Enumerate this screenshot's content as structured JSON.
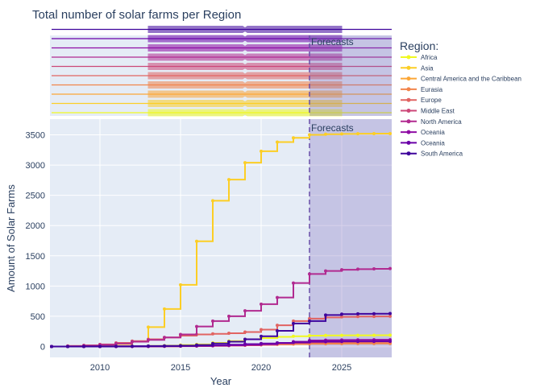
{
  "chart_data": {
    "type": "line",
    "title": "Total number of solar farms per Region",
    "xlabel": "Year",
    "ylabel": "Amount of Solar Farms",
    "xlim": [
      2006.9,
      2028.1
    ],
    "ylim": [
      -180,
      3760
    ],
    "xticks": [
      2010,
      2015,
      2020,
      2025
    ],
    "yticks": [
      0,
      500,
      1000,
      1500,
      2000,
      2500,
      3000,
      3500
    ],
    "legend_title": "Region:",
    "legend_position": "right",
    "grid": true,
    "shape": "step",
    "forecast": {
      "label": "Forecasts",
      "start": 2023,
      "end": 2028.1
    },
    "series": [
      {
        "name": "Africa",
        "color": "#f0f921",
        "x": [
          2007,
          2008,
          2009,
          2010,
          2011,
          2012,
          2013,
          2014,
          2015,
          2016,
          2017,
          2018,
          2019,
          2020,
          2021,
          2022,
          2023,
          2024,
          2025,
          2026,
          2027,
          2028
        ],
        "values": [
          0,
          0,
          0,
          0,
          2,
          5,
          10,
          15,
          25,
          35,
          60,
          90,
          120,
          140,
          160,
          170,
          180,
          182,
          184,
          185,
          186,
          187
        ]
      },
      {
        "name": "Asia",
        "color": "#fcce25",
        "x": [
          2007,
          2008,
          2009,
          2010,
          2011,
          2012,
          2013,
          2014,
          2015,
          2016,
          2017,
          2018,
          2019,
          2020,
          2021,
          2022,
          2023,
          2024,
          2025,
          2026,
          2027,
          2028
        ],
        "values": [
          0,
          5,
          10,
          20,
          40,
          80,
          320,
          620,
          1020,
          1740,
          2410,
          2760,
          3040,
          3230,
          3380,
          3450,
          3500,
          3510,
          3515,
          3518,
          3520,
          3520
        ]
      },
      {
        "name": "Central America and the Caribbean",
        "color": "#fca636",
        "x": [
          2007,
          2008,
          2009,
          2010,
          2011,
          2012,
          2013,
          2014,
          2015,
          2016,
          2017,
          2018,
          2019,
          2020,
          2021,
          2022,
          2023,
          2024,
          2025,
          2026,
          2027,
          2028
        ],
        "values": [
          0,
          0,
          0,
          0,
          1,
          2,
          3,
          5,
          8,
          10,
          15,
          20,
          25,
          30,
          40,
          45,
          50,
          52,
          53,
          54,
          55,
          55
        ]
      },
      {
        "name": "Eurasia",
        "color": "#f2844b",
        "x": [
          2007,
          2008,
          2009,
          2010,
          2011,
          2012,
          2013,
          2014,
          2015,
          2016,
          2017,
          2018,
          2019,
          2020,
          2021,
          2022,
          2023,
          2024,
          2025,
          2026,
          2027,
          2028
        ],
        "values": [
          0,
          0,
          0,
          0,
          0,
          1,
          2,
          4,
          6,
          8,
          12,
          18,
          22,
          28,
          35,
          40,
          45,
          47,
          48,
          49,
          50,
          50
        ]
      },
      {
        "name": "Europe",
        "color": "#e16462",
        "x": [
          2007,
          2008,
          2009,
          2010,
          2011,
          2012,
          2013,
          2014,
          2015,
          2016,
          2017,
          2018,
          2019,
          2020,
          2021,
          2022,
          2023,
          2024,
          2025,
          2026,
          2027,
          2028
        ],
        "values": [
          0,
          10,
          20,
          35,
          60,
          90,
          120,
          150,
          180,
          200,
          210,
          220,
          240,
          280,
          350,
          420,
          460,
          480,
          490,
          495,
          498,
          500
        ]
      },
      {
        "name": "Middle East",
        "color": "#cc4778",
        "x": [
          2007,
          2008,
          2009,
          2010,
          2011,
          2012,
          2013,
          2014,
          2015,
          2016,
          2017,
          2018,
          2019,
          2020,
          2021,
          2022,
          2023,
          2024,
          2025,
          2026,
          2027,
          2028
        ],
        "values": [
          0,
          0,
          0,
          0,
          0,
          1,
          2,
          3,
          5,
          8,
          12,
          15,
          20,
          30,
          50,
          60,
          70,
          75,
          78,
          80,
          81,
          82
        ]
      },
      {
        "name": "North America",
        "color": "#b12a90",
        "x": [
          2007,
          2008,
          2009,
          2010,
          2011,
          2012,
          2013,
          2014,
          2015,
          2016,
          2017,
          2018,
          2019,
          2020,
          2021,
          2022,
          2023,
          2024,
          2025,
          2026,
          2027,
          2028
        ],
        "values": [
          0,
          5,
          15,
          30,
          50,
          80,
          110,
          150,
          200,
          330,
          420,
          500,
          590,
          700,
          810,
          1050,
          1200,
          1250,
          1270,
          1280,
          1285,
          1290
        ]
      },
      {
        "name": "Oceania",
        "color": "#8f0da4",
        "x": [
          2007,
          2008,
          2009,
          2010,
          2011,
          2012,
          2013,
          2014,
          2015,
          2016,
          2017,
          2018,
          2019,
          2020,
          2021,
          2022,
          2023,
          2024,
          2025,
          2026,
          2027,
          2028
        ],
        "values": [
          0,
          0,
          0,
          0,
          1,
          2,
          3,
          5,
          8,
          10,
          15,
          20,
          30,
          40,
          60,
          80,
          100,
          105,
          108,
          110,
          111,
          112
        ]
      },
      {
        "name": "Oceania",
        "color": "#6a00a8",
        "x": [
          2007,
          2008,
          2009,
          2010,
          2011,
          2012,
          2013,
          2014,
          2015,
          2016,
          2017,
          2018,
          2019,
          2020,
          2021,
          2022,
          2023,
          2024,
          2025,
          2026,
          2027,
          2028
        ],
        "values": [
          0,
          0,
          0,
          1,
          2,
          3,
          5,
          8,
          10,
          15,
          20,
          30,
          40,
          50,
          60,
          70,
          80,
          82,
          84,
          85,
          86,
          86
        ]
      },
      {
        "name": "South America",
        "color": "#3e049c",
        "x": [
          2007,
          2008,
          2009,
          2010,
          2011,
          2012,
          2013,
          2014,
          2015,
          2016,
          2017,
          2018,
          2019,
          2020,
          2021,
          2022,
          2023,
          2024,
          2025,
          2026,
          2027,
          2028
        ],
        "values": [
          0,
          0,
          1,
          2,
          3,
          5,
          8,
          10,
          15,
          25,
          50,
          80,
          120,
          170,
          260,
          380,
          420,
          520,
          535,
          540,
          542,
          545
        ]
      }
    ]
  }
}
